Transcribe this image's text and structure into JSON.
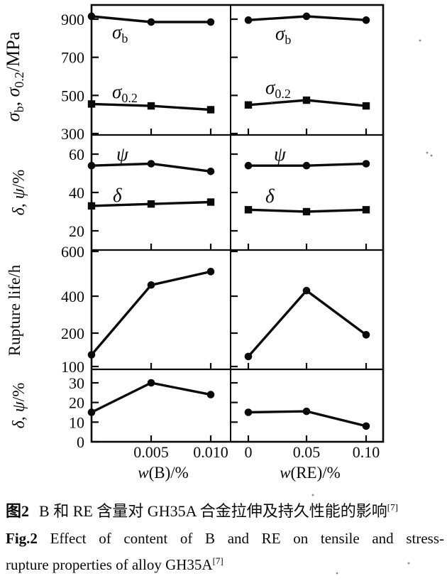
{
  "caption": {
    "cn": {
      "label": "图2",
      "text": "B 和 RE 含量对 GH35A 合金拉伸及持久性能的影响",
      "ref": "[7]"
    },
    "en": {
      "label": "Fig.2",
      "line1": "Effect of content of B and RE on tensile and stress-",
      "line2": "rupture properties of alloy GH35A",
      "ref": "[7]"
    }
  },
  "chart_data": {
    "type": "line",
    "layout": "4 stacked rows x 2 columns (left: B content, right: RE content), shared y axes, no grid, no legend (in-panel labels)",
    "ink_color": "#0a0a0a",
    "columns": [
      {
        "id": "B",
        "xlabel_parts": [
          {
            "t": "w",
            "i": 1
          },
          {
            "t": "(B)/%"
          }
        ],
        "x": [
          0,
          0.005,
          0.01
        ],
        "xtick_labels": [
          "0",
          "0.005",
          "0.010"
        ]
      },
      {
        "id": "RE",
        "xlabel_parts": [
          {
            "t": "w",
            "i": 1
          },
          {
            "t": "(RE)/%"
          }
        ],
        "x": [
          0,
          0.05,
          0.1
        ],
        "xtick_labels": [
          "0",
          "0.05",
          "0.10"
        ]
      }
    ],
    "rows": [
      {
        "ylabel": "σb, σ0.2/MPa",
        "ylabel_parts": [
          {
            "t": "σ",
            "i": 1
          },
          {
            "t": "b",
            "s": 1
          },
          {
            "t": ", "
          },
          {
            "t": "σ",
            "i": 1
          },
          {
            "t": "0.2",
            "s": 1
          },
          {
            "t": "/MPa"
          }
        ],
        "yticks": [
          300,
          500,
          700,
          900
        ],
        "ylim": [
          300,
          940
        ],
        "series": [
          {
            "name": "σb",
            "label_parts": [
              {
                "t": "σ",
                "i": 1
              },
              {
                "t": "b",
                "s": 1
              }
            ],
            "marker": "circle",
            "values_B": [
              915,
              885,
              885
            ],
            "values_RE": [
              895,
              915,
              895
            ]
          },
          {
            "name": "σ0.2",
            "label_parts": [
              {
                "t": "σ",
                "i": 1
              },
              {
                "t": "0.2",
                "s": 1
              }
            ],
            "marker": "square",
            "values_B": [
              455,
              445,
              425
            ],
            "values_RE": [
              450,
              475,
              445
            ]
          }
        ]
      },
      {
        "ylabel": "δ, ψ/%",
        "ylabel_parts": [
          {
            "t": "δ",
            "i": 1
          },
          {
            "t": ", "
          },
          {
            "t": "ψ",
            "i": 1
          },
          {
            "t": "/%"
          }
        ],
        "yticks": [
          20,
          40,
          60
        ],
        "ylim": [
          13,
          66
        ],
        "series": [
          {
            "name": "ψ",
            "label_parts": [
              {
                "t": "ψ",
                "i": 1
              }
            ],
            "marker": "circle",
            "values_B": [
              54,
              55,
              51
            ],
            "values_RE": [
              54,
              54,
              55
            ]
          },
          {
            "name": "δ",
            "label_parts": [
              {
                "t": "δ",
                "i": 1
              }
            ],
            "marker": "square",
            "values_B": [
              33,
              34,
              35
            ],
            "values_RE": [
              31,
              30,
              31
            ]
          }
        ]
      },
      {
        "ylabel": "Rupture life/h",
        "ylabel_parts": [
          {
            "t": "Rupture life/h"
          }
        ],
        "yticks": [
          100,
          200,
          400,
          600
        ],
        "ylim": [
          100,
          600
        ],
        "series": [
          {
            "name": "rupture life",
            "label_parts": [],
            "marker": "circle",
            "values_B": [
              135,
              450,
              510
            ],
            "values_RE": [
              130,
              425,
              195
            ]
          }
        ]
      },
      {
        "ylabel": "δ, ψ/%",
        "ylabel_parts": [
          {
            "t": "δ",
            "i": 1
          },
          {
            "t": ", "
          },
          {
            "t": "ψ",
            "i": 1
          },
          {
            "t": "/%"
          }
        ],
        "yticks": [
          0,
          10,
          20,
          30
        ],
        "ylim": [
          0,
          37
        ],
        "series": [
          {
            "name": "elongation / reduction of area",
            "label_parts": [],
            "marker": "circle",
            "values_B": [
              15,
              30,
              24
            ],
            "values_RE": [
              15,
              15.5,
              8
            ]
          }
        ]
      }
    ]
  }
}
